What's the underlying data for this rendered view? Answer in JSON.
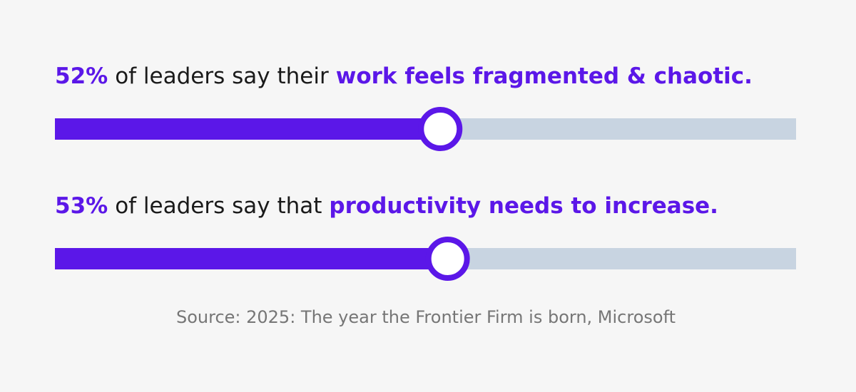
{
  "chart_data": {
    "type": "progress",
    "values": [
      52,
      53
    ],
    "value_labels": [
      "52%",
      "53%"
    ],
    "texts": [
      "of leaders say their",
      "of leaders say that"
    ],
    "highlights": [
      "work feels fragmented & chaotic.",
      "productivity needs to increase."
    ],
    "xlim": [
      0,
      100
    ],
    "color": "#5b17e8",
    "track_color": "#c8d4e1",
    "source": "Source: 2025: The year the Frontier Firm is born, Microsoft"
  }
}
